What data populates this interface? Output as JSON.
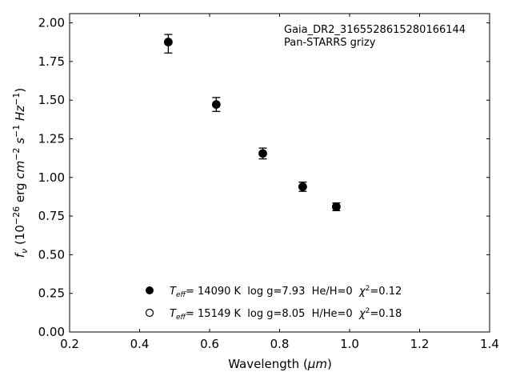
{
  "chart_data": {
    "type": "scatter",
    "annotation": {
      "object_id": "Gaia_DR2_3165528615280166144",
      "survey": "Pan-STARRS grizy"
    },
    "xlabel": {
      "prefix": "Wavelength (",
      "unit": "μm",
      "suffix": ")"
    },
    "ylabel": {
      "symbol": "f",
      "symbol_sub": "ν",
      "scale_pre": " (10",
      "scale_exp": "−26",
      "erg": " erg ",
      "cm": "cm",
      "cm_exp": "−2",
      "s": " s",
      "s_exp": "−1",
      "hz": " Hz",
      "hz_exp": "−1",
      "close": ")"
    },
    "xlim": [
      0.2,
      1.4
    ],
    "ylim": [
      0.0,
      2.06
    ],
    "x_ticks": [
      0.2,
      0.4,
      0.6,
      0.8,
      1.0,
      1.2,
      1.4
    ],
    "x_tick_labels": [
      "0.2",
      "0.4",
      "0.6",
      "0.8",
      "1.0",
      "1.2",
      "1.4"
    ],
    "y_ticks": [
      0.0,
      0.25,
      0.5,
      0.75,
      1.0,
      1.25,
      1.5,
      1.75,
      2.0
    ],
    "y_tick_labels": [
      "0.00",
      "0.25",
      "0.50",
      "0.75",
      "1.00",
      "1.25",
      "1.50",
      "1.75",
      "2.00"
    ],
    "observed": {
      "x": [
        0.482,
        0.482,
        0.619,
        0.752,
        0.866,
        0.962
      ],
      "y": [
        1.865,
        1.876,
        1.472,
        1.155,
        0.94,
        0.81
      ],
      "yerr": [
        0.06,
        0.0,
        0.045,
        0.035,
        0.03,
        0.025
      ],
      "marker": "errorbar-cap"
    },
    "series": [
      {
        "marker": "filled-circle",
        "color": "#000000",
        "x": [
          0.482,
          0.619,
          0.752,
          0.866,
          0.962
        ],
        "y": [
          1.876,
          1.472,
          1.155,
          0.94,
          0.81
        ],
        "legend": {
          "t": "T",
          "t_sub": "eff",
          "text": "= 14090 K  log g=7.93  He/H=0  ",
          "chi": "χ",
          "chi_exp": "2",
          "chi_val": "=0.12"
        }
      },
      {
        "marker": "open-circle",
        "color": "#000000",
        "x": [],
        "y": [],
        "legend": {
          "t": "T",
          "t_sub": "eff",
          "text": "= 15149 K  log g=8.05  H/He=0  ",
          "chi": "χ",
          "chi_exp": "2",
          "chi_val": "=0.18"
        }
      }
    ],
    "grid": false,
    "legend_position": "bottom-center"
  }
}
